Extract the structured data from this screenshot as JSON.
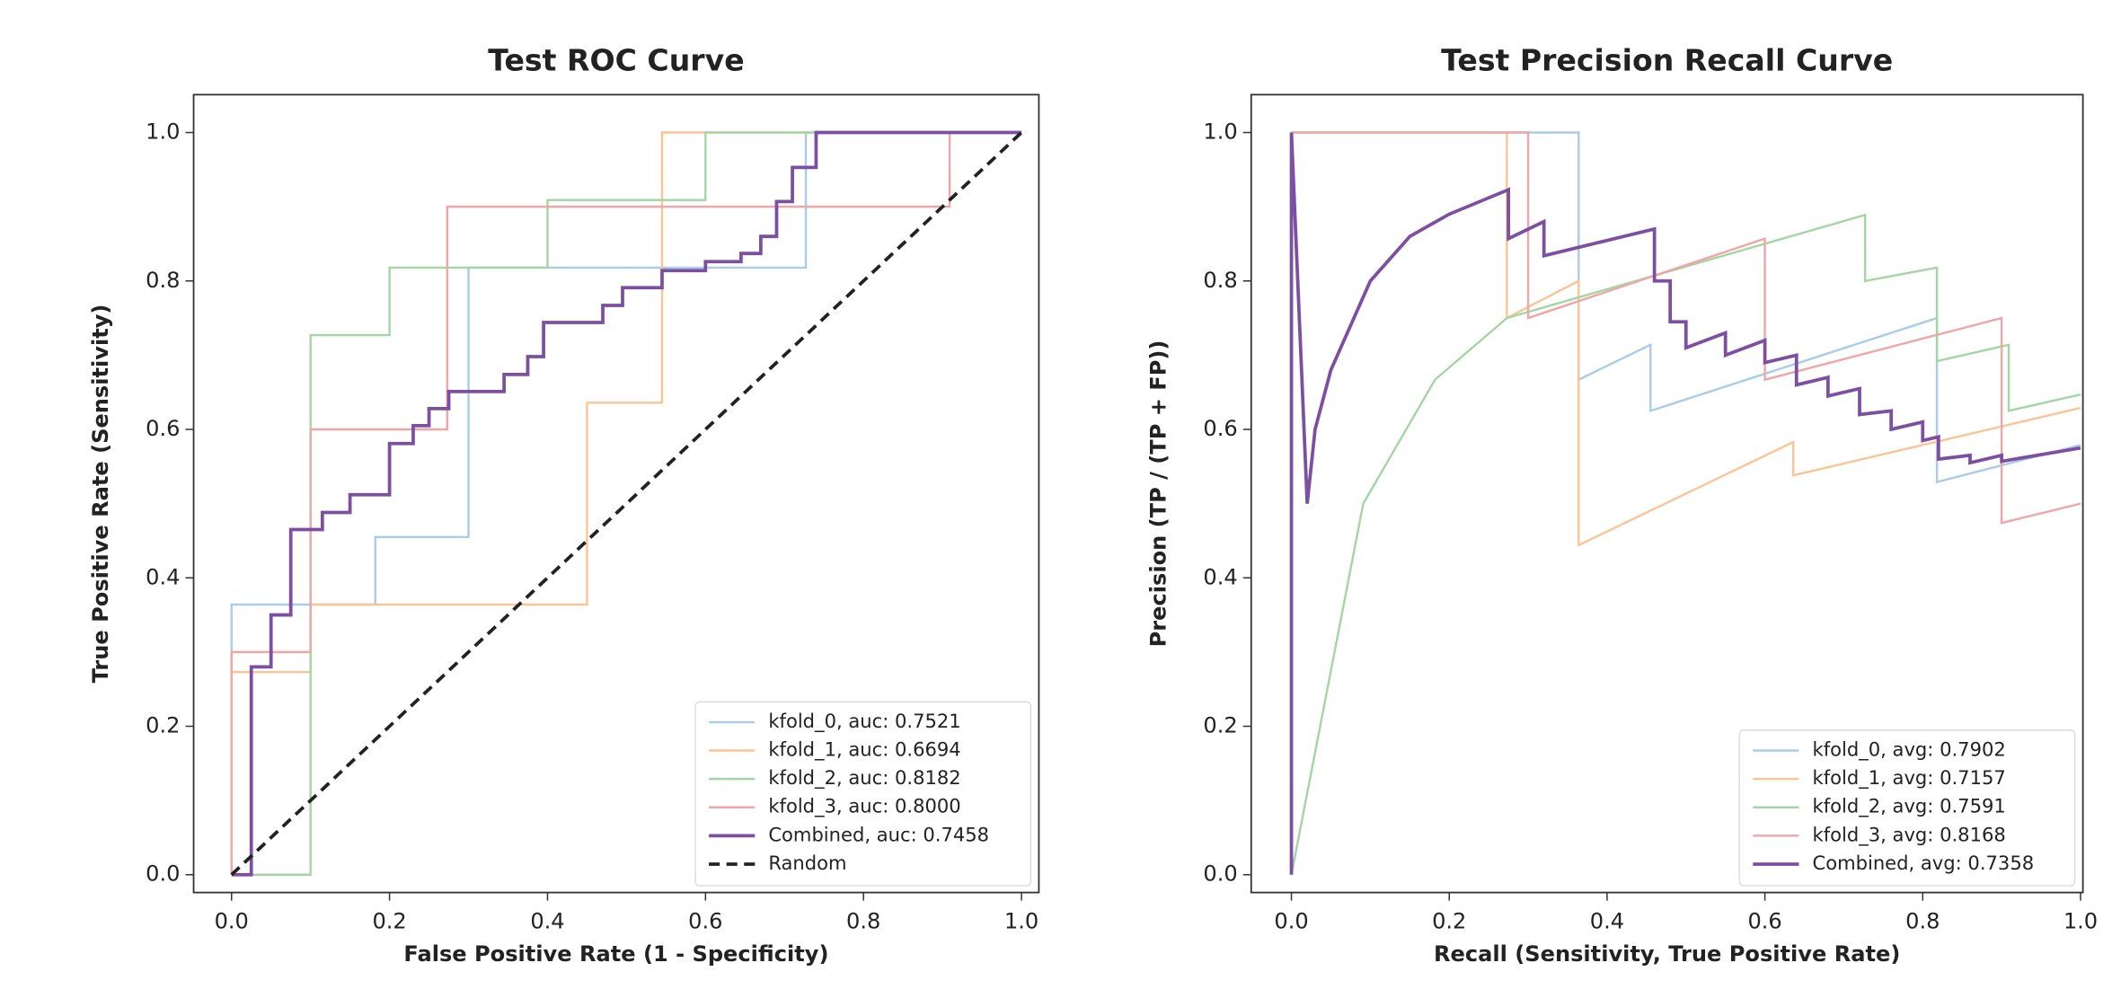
{
  "chart_data": [
    {
      "type": "line",
      "title": "Test ROC Curve",
      "x_label": "False Positive Rate (1 - Specificity)",
      "y_label": "True Positive Rate (Sensitivity)",
      "xlim": [
        -0.048,
        1.022
      ],
      "ylim": [
        -0.024,
        1.051
      ],
      "xticks": [
        {
          "value": 0,
          "label": "0.0"
        },
        0.2,
        0.4,
        0.6,
        0.8,
        {
          "value": 1,
          "label": "1.0"
        }
      ],
      "yticks": [
        {
          "value": 0,
          "label": "0.0"
        },
        0.2,
        0.4,
        0.6,
        0.8,
        {
          "value": 1,
          "label": "1.0"
        }
      ],
      "legend": "lower right",
      "series": [
        {
          "name": "kfold_0, auc: 0.7521",
          "color": "#a9cce9",
          "x": [
            0,
            0,
            0.182,
            0.182,
            0.3,
            0.3,
            0.727,
            0.727,
            1
          ],
          "values": [
            0,
            0.364,
            0.364,
            0.455,
            0.455,
            0.818,
            0.818,
            1,
            1
          ]
        },
        {
          "name": "kfold_1, auc: 0.6694",
          "color": "#f9c596",
          "x": [
            0,
            0,
            0.1,
            0.1,
            0.45,
            0.45,
            0.545,
            0.545,
            1
          ],
          "values": [
            0,
            0.273,
            0.273,
            0.364,
            0.364,
            0.636,
            0.636,
            1,
            1
          ]
        },
        {
          "name": "kfold_2, auc: 0.8182",
          "color": "#a3d6a3",
          "x": [
            0,
            0.1,
            0.1,
            0.2,
            0.2,
            0.4,
            0.4,
            0.6,
            0.6,
            1
          ],
          "values": [
            0,
            0,
            0.727,
            0.727,
            0.818,
            0.818,
            0.909,
            0.909,
            1,
            1
          ]
        },
        {
          "name": "kfold_3, auc: 0.8000",
          "color": "#eea6a6",
          "x": [
            0,
            0,
            0.1,
            0.1,
            0.273,
            0.273,
            0.909,
            0.909,
            1
          ],
          "values": [
            0,
            0.3,
            0.3,
            0.6,
            0.6,
            0.9,
            0.9,
            1,
            1
          ]
        },
        {
          "name": "Combined, auc: 0.7458",
          "color": "#7d4fa1",
          "width": 2.5,
          "x": [
            0,
            0.025,
            0.025,
            0.05,
            0.05,
            0.075,
            0.075,
            0.115,
            0.115,
            0.15,
            0.15,
            0.2,
            0.2,
            0.23,
            0.23,
            0.25,
            0.25,
            0.275,
            0.275,
            0.345,
            0.345,
            0.375,
            0.375,
            0.395,
            0.395,
            0.47,
            0.47,
            0.495,
            0.495,
            0.545,
            0.545,
            0.6,
            0.6,
            0.645,
            0.645,
            0.67,
            0.67,
            0.69,
            0.69,
            0.71,
            0.71,
            0.74,
            0.74,
            1
          ],
          "values": [
            0,
            0,
            0.28,
            0.28,
            0.35,
            0.35,
            0.465,
            0.465,
            0.488,
            0.488,
            0.512,
            0.512,
            0.581,
            0.581,
            0.605,
            0.605,
            0.628,
            0.628,
            0.651,
            0.651,
            0.674,
            0.674,
            0.698,
            0.698,
            0.744,
            0.744,
            0.767,
            0.767,
            0.791,
            0.791,
            0.814,
            0.814,
            0.826,
            0.826,
            0.837,
            0.837,
            0.86,
            0.86,
            0.907,
            0.907,
            0.953,
            0.953,
            1,
            1
          ]
        },
        {
          "name": "Random",
          "color": "#222222",
          "dash": "dashed",
          "width": 2.5,
          "x": [
            0,
            1
          ],
          "values": [
            0,
            1
          ]
        }
      ]
    },
    {
      "type": "line",
      "title": "Test Precision Recall Curve",
      "x_label": "Recall (Sensitivity, True Positive Rate)",
      "y_label": "Precision (TP / (TP + FP))",
      "xlim": [
        -0.051,
        1.003
      ],
      "ylim": [
        -0.024,
        1.051
      ],
      "xticks": [
        {
          "value": 0,
          "label": "0.0"
        },
        0.2,
        0.4,
        0.6,
        0.8,
        {
          "value": 1,
          "label": "1.0"
        }
      ],
      "yticks": [
        {
          "value": 0,
          "label": "0.0"
        },
        0.2,
        0.4,
        0.6,
        0.8,
        {
          "value": 1,
          "label": "1.0"
        }
      ],
      "legend": "lower right",
      "series": [
        {
          "name": "kfold_0, avg: 0.7902",
          "color": "#a9cce9",
          "x": [
            0,
            0.364,
            0.364,
            0.455,
            0.455,
            0.818,
            0.818,
            1
          ],
          "values": [
            1,
            1,
            0.667,
            0.714,
            0.625,
            0.75,
            0.529,
            0.579
          ]
        },
        {
          "name": "kfold_1, avg: 0.7157",
          "color": "#f9c596",
          "x": [
            0,
            0.273,
            0.273,
            0.364,
            0.364,
            0.636,
            0.636,
            1
          ],
          "values": [
            1,
            1,
            0.75,
            0.8,
            0.444,
            0.583,
            0.538,
            0.629
          ]
        },
        {
          "name": "kfold_2, avg: 0.7591",
          "color": "#a3d6a3",
          "x": [
            0,
            0.091,
            0.182,
            0.273,
            0.727,
            0.727,
            0.818,
            0.818,
            0.909,
            0.909,
            1
          ],
          "values": [
            0,
            0.5,
            0.667,
            0.75,
            0.889,
            0.8,
            0.818,
            0.692,
            0.714,
            0.625,
            0.647
          ]
        },
        {
          "name": "kfold_3, avg: 0.8168",
          "color": "#eea6a6",
          "x": [
            0,
            0.3,
            0.3,
            0.6,
            0.6,
            0.9,
            0.9,
            1
          ],
          "values": [
            1,
            1,
            0.75,
            0.857,
            0.667,
            0.75,
            0.474,
            0.5
          ]
        },
        {
          "name": "Combined, avg: 0.7358",
          "color": "#7d4fa1",
          "width": 2.5,
          "x": [
            0,
            0,
            0.02,
            0.03,
            0.05,
            0.1,
            0.15,
            0.2,
            0.275,
            0.275,
            0.32,
            0.32,
            0.46,
            0.46,
            0.48,
            0.48,
            0.5,
            0.5,
            0.55,
            0.55,
            0.6,
            0.6,
            0.64,
            0.64,
            0.68,
            0.68,
            0.72,
            0.72,
            0.76,
            0.76,
            0.8,
            0.8,
            0.82,
            0.82,
            0.86,
            0.86,
            0.9,
            0.9,
            1
          ],
          "values": [
            0,
            1,
            0.5,
            0.6,
            0.68,
            0.8,
            0.86,
            0.89,
            0.923,
            0.857,
            0.88,
            0.834,
            0.87,
            0.8,
            0.8,
            0.745,
            0.745,
            0.71,
            0.73,
            0.7,
            0.72,
            0.69,
            0.7,
            0.66,
            0.67,
            0.645,
            0.655,
            0.62,
            0.625,
            0.6,
            0.61,
            0.585,
            0.59,
            0.56,
            0.565,
            0.555,
            0.565,
            0.557,
            0.575
          ]
        }
      ]
    }
  ]
}
